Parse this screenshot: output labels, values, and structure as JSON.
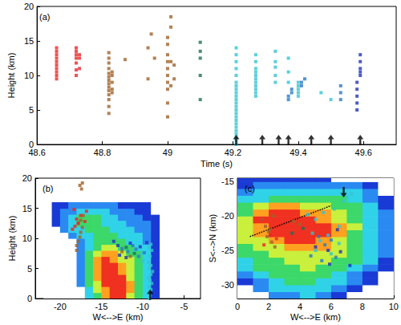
{
  "chart_data": [
    {
      "type": "scatter",
      "title": "(a)",
      "xlabel": "Time (s)",
      "ylabel": "Height (km)",
      "xlim": [
        48.6,
        49.7
      ],
      "xticks": [
        48.6,
        48.8,
        49.0,
        49.2,
        49.4,
        49.6
      ],
      "ylim": [
        0,
        20
      ],
      "yticks": [
        0,
        5,
        10,
        15,
        20
      ],
      "marker": "square",
      "series": [
        {
          "color": "#e8282a",
          "x": [
            48.66,
            48.66,
            48.66,
            48.66,
            48.66,
            48.66,
            48.66,
            48.66,
            48.66,
            48.66,
            48.72,
            48.72,
            48.72,
            48.72,
            48.72,
            48.72,
            48.72,
            48.73,
            48.73,
            48.73
          ],
          "y": [
            9.5,
            10,
            10.5,
            11,
            11.5,
            12,
            12.5,
            13,
            13.5,
            14,
            10,
            10.8,
            11.8,
            12.5,
            13,
            13.5,
            14,
            11,
            12.5,
            13
          ]
        },
        {
          "color": "#a0612a",
          "x": [
            48.82,
            48.82,
            48.82,
            48.82,
            48.82,
            48.82,
            48.82,
            48.82,
            48.82,
            48.82,
            48.82,
            48.82,
            48.82,
            48.82,
            48.83,
            48.83,
            48.83,
            48.83,
            48.83,
            48.87,
            48.94,
            48.94,
            48.95,
            48.96,
            49.0,
            49.0,
            49.0,
            49.0,
            49.0,
            49.0,
            49.0,
            49.0,
            49.0,
            49.0,
            49.01,
            49.01,
            49.01,
            49.01,
            49.02,
            49.02
          ],
          "y": [
            4.5,
            5.5,
            6.5,
            7.2,
            7.8,
            8.3,
            8.8,
            9.3,
            9.8,
            10.3,
            11,
            11.8,
            12.5,
            13.3,
            7.5,
            8,
            9,
            10,
            10.5,
            12.3,
            9.5,
            14,
            16,
            12.5,
            4,
            6,
            8,
            9,
            10,
            11,
            12,
            13,
            14.5,
            15.5,
            8.5,
            12,
            17,
            18.5,
            9.5,
            11.5
          ]
        },
        {
          "color": "#1e6e5a",
          "x": [
            49.1,
            49.1,
            49.1,
            49.1,
            49.1
          ],
          "y": [
            6.5,
            10,
            12.5,
            13.5,
            14.8
          ]
        },
        {
          "color": "#35c3d2",
          "x": [
            49.21,
            49.21,
            49.21,
            49.21,
            49.21,
            49.21,
            49.21,
            49.21,
            49.21,
            49.21,
            49.21,
            49.21,
            49.21,
            49.21,
            49.21,
            49.21,
            49.21,
            49.21,
            49.21,
            49.21,
            49.21,
            49.21,
            49.21,
            49.21,
            49.27,
            49.27,
            49.27,
            49.27,
            49.27,
            49.27,
            49.27,
            49.27,
            49.27,
            49.27,
            49.27,
            49.33,
            49.33,
            49.33,
            49.33,
            49.33,
            49.37,
            49.37,
            49.37,
            49.4,
            49.4,
            49.4,
            49.4,
            49.4,
            49.47,
            49.5
          ],
          "y": [
            0,
            0.5,
            1,
            1.5,
            2,
            2.5,
            3,
            3.5,
            4,
            4.5,
            5,
            5.5,
            6,
            6.5,
            7,
            7.5,
            8,
            8.5,
            9,
            10,
            11,
            12,
            13,
            14,
            7,
            7.5,
            8,
            8.5,
            9,
            9.5,
            10,
            10.5,
            11,
            12,
            13,
            9,
            10,
            11.2,
            12,
            13.5,
            9,
            10.5,
            12.5,
            7,
            7.5,
            8,
            8.5,
            9,
            7.5,
            6.5
          ]
        },
        {
          "color": "#2a78c8",
          "x": [
            49.37,
            49.37,
            49.38,
            49.38,
            49.41,
            49.41,
            49.42,
            49.53,
            49.53,
            49.53
          ],
          "y": [
            6.5,
            7,
            7.5,
            8,
            8.5,
            9,
            9.5,
            6.5,
            7.5,
            8.5
          ]
        },
        {
          "color": "#1f35b8",
          "x": [
            49.58,
            49.58,
            49.58,
            49.58,
            49.58,
            49.59,
            49.59,
            49.59,
            49.59,
            49.59
          ],
          "y": [
            5,
            6,
            7,
            8,
            9,
            10,
            10.5,
            11,
            12,
            13
          ]
        }
      ],
      "arrows": {
        "direction": "up",
        "x": [
          49.21,
          49.29,
          49.34,
          49.37,
          49.44,
          49.5,
          49.59
        ],
        "y": [
          1.4,
          1.4,
          1.4,
          1.4,
          1.4,
          1.4,
          1.4
        ]
      }
    },
    {
      "type": "scatter",
      "title": "(b)",
      "xlabel": "W<-->E (km)",
      "ylabel": "Height (km)",
      "xlim": [
        -23,
        -3
      ],
      "xticks": [
        -20,
        -15,
        -10,
        -5
      ],
      "ylim": [
        0,
        20
      ],
      "yticks": [
        0,
        5,
        10,
        15,
        20
      ],
      "marker": "square",
      "reflectivity": {
        "x0": -22,
        "y0": 0,
        "dx": 1,
        "dy": 1,
        "colors": [
          "#ffffff",
          "#1a3ad6",
          "#2a8af2",
          "#30d2e8",
          "#3cd86a",
          "#c8f03c",
          "#ffa020",
          "#f03020"
        ],
        "levels": [
          [
            0,
            0,
            0,
            0,
            0,
            3,
            4,
            6,
            7,
            7,
            5,
            4,
            3,
            1
          ],
          [
            0,
            0,
            0,
            0,
            0,
            3,
            5,
            6,
            7,
            7,
            6,
            4,
            3,
            1
          ],
          [
            0,
            0,
            0,
            0,
            2,
            4,
            5,
            7,
            7,
            7,
            6,
            4,
            3,
            1
          ],
          [
            0,
            0,
            0,
            0,
            2,
            4,
            6,
            7,
            7,
            7,
            5,
            4,
            3,
            1
          ],
          [
            0,
            0,
            0,
            0,
            2,
            4,
            6,
            7,
            7,
            6,
            5,
            4,
            3,
            1
          ],
          [
            0,
            0,
            0,
            0,
            2,
            4,
            6,
            7,
            7,
            6,
            5,
            4,
            3,
            1
          ],
          [
            0,
            0,
            0,
            0,
            2,
            4,
            6,
            7,
            6,
            5,
            5,
            4,
            3,
            1
          ],
          [
            0,
            0,
            0,
            0,
            2,
            4,
            5,
            6,
            6,
            5,
            4,
            4,
            3,
            1
          ],
          [
            0,
            0,
            0,
            0,
            2,
            3,
            4,
            5,
            5,
            4,
            4,
            3,
            3,
            1
          ],
          [
            0,
            0,
            0,
            0,
            2,
            3,
            4,
            4,
            4,
            4,
            3,
            3,
            2,
            1
          ],
          [
            0,
            0,
            0,
            2,
            3,
            3,
            4,
            4,
            4,
            3,
            3,
            3,
            2,
            1
          ],
          [
            0,
            0,
            2,
            3,
            3,
            4,
            4,
            4,
            3,
            3,
            3,
            2,
            2,
            1
          ],
          [
            0,
            1,
            2,
            3,
            4,
            4,
            4,
            3,
            3,
            3,
            2,
            2,
            2,
            1
          ],
          [
            0,
            1,
            2,
            3,
            4,
            4,
            4,
            3,
            3,
            2,
            2,
            2,
            1,
            1
          ],
          [
            0,
            1,
            2,
            2,
            3,
            3,
            3,
            3,
            2,
            2,
            2,
            1,
            1,
            0
          ],
          [
            0,
            1,
            1,
            2,
            2,
            2,
            2,
            2,
            2,
            1,
            1,
            1,
            1,
            0
          ]
        ]
      },
      "series": [
        {
          "color": "#a0612a",
          "x": [
            -18,
            -18,
            -17.8,
            -17.6,
            -17.5,
            -17.3,
            -17.8,
            -17.5,
            -17.2,
            -17.4,
            -17.6,
            -17.3,
            -12.5,
            -11.5
          ],
          "y": [
            8,
            8.8,
            9.5,
            10.2,
            11,
            11.8,
            12.5,
            13,
            13.8,
            18.2,
            18.8,
            19.2,
            7.8,
            7
          ]
        },
        {
          "color": "#e8282a",
          "x": [
            -18.5,
            -18.2,
            -17.8,
            -18,
            -17.5,
            -16.8,
            -17,
            -18.3
          ],
          "y": [
            11.5,
            12,
            12.5,
            13.2,
            13.8,
            14.5,
            12.8,
            14.8
          ]
        },
        {
          "color": "#1e6e5a",
          "x": [
            -12,
            -11
          ],
          "y": [
            8.5,
            7.5
          ]
        },
        {
          "color": "#35c3d2",
          "x": [
            -9.2,
            -9.1,
            -9.3,
            -9.0,
            -9.2,
            -8.9,
            -9.1,
            -9.3,
            -9.0,
            -8.8,
            -9.2,
            -9.0,
            -9.3,
            -9.1,
            -8.9,
            -9.2,
            -9.0,
            -11,
            -10.2,
            -10
          ],
          "y": [
            0,
            0.5,
            1,
            1.5,
            2,
            2.5,
            3,
            3.5,
            4,
            4.5,
            5,
            5.5,
            6,
            7,
            8,
            8.5,
            9,
            8,
            7.5,
            6.2
          ]
        },
        {
          "color": "#2a78c8",
          "x": [
            -12.5,
            -11.8,
            -11.2,
            -10.5,
            -10.8,
            -9.8
          ],
          "y": [
            8.3,
            7.8,
            8.8,
            7,
            8.2,
            7.6
          ]
        },
        {
          "color": "#1f35b8",
          "x": [
            -13.5,
            -13,
            -12.8,
            -11.5,
            -10.3,
            -9.5,
            -12
          ],
          "y": [
            9.5,
            8.8,
            7.2,
            9.2,
            8.6,
            9.3,
            6.8
          ]
        }
      ],
      "arrows": {
        "direction": "up",
        "x": [
          -9.1
        ],
        "y": [
          1.5
        ]
      }
    },
    {
      "type": "scatter",
      "title": "(c)",
      "xlabel": "W<-->E (km)",
      "ylabel": "S<-->N (km)",
      "xlim": [
        0,
        10
      ],
      "xticks": [
        0,
        2,
        4,
        6,
        8,
        10
      ],
      "ylim": [
        -32,
        -14.5
      ],
      "yticks": [
        -30,
        -25,
        -20,
        -15
      ],
      "marker": "square",
      "reflectivity": {
        "x0": 0,
        "y0": -32,
        "dx": 1,
        "dy": 1,
        "colors": [
          "#ffffff",
          "#1a3ad6",
          "#2a8af2",
          "#30d2e8",
          "#3cd86a",
          "#c8f03c",
          "#ffa020",
          "#f03020"
        ],
        "levels": [
          [
            0,
            0,
            2,
            2,
            3,
            2,
            1,
            0,
            0,
            0
          ],
          [
            0,
            2,
            3,
            3,
            3,
            3,
            2,
            1,
            0,
            0
          ],
          [
            1,
            2,
            3,
            4,
            4,
            3,
            3,
            2,
            1,
            0
          ],
          [
            2,
            3,
            4,
            4,
            4,
            4,
            3,
            2,
            1,
            0
          ],
          [
            3,
            4,
            4,
            4,
            5,
            4,
            4,
            3,
            2,
            1
          ],
          [
            3,
            4,
            4,
            5,
            5,
            5,
            4,
            4,
            3,
            1
          ],
          [
            4,
            4,
            5,
            5,
            5,
            5,
            5,
            4,
            3,
            2
          ],
          [
            4,
            5,
            5,
            6,
            6,
            6,
            5,
            4,
            3,
            2
          ],
          [
            5,
            5,
            6,
            7,
            7,
            6,
            5,
            4,
            3,
            2
          ],
          [
            5,
            6,
            7,
            7,
            7,
            7,
            6,
            4,
            3,
            2
          ],
          [
            5,
            6,
            7,
            7,
            7,
            7,
            6,
            5,
            3,
            2
          ],
          [
            5,
            7,
            7,
            7,
            7,
            6,
            5,
            4,
            3,
            2
          ],
          [
            4,
            6,
            7,
            7,
            6,
            6,
            5,
            4,
            3,
            2
          ],
          [
            4,
            5,
            6,
            6,
            5,
            5,
            4,
            4,
            3,
            1
          ],
          [
            3,
            3,
            4,
            4,
            4,
            4,
            4,
            3,
            2,
            1
          ],
          [
            2,
            3,
            3,
            3,
            3,
            3,
            3,
            3,
            2,
            0
          ],
          [
            1,
            2,
            2,
            2,
            2,
            2,
            2,
            2,
            1,
            0
          ],
          [
            1,
            1,
            1,
            1,
            1,
            1,
            0,
            0,
            0,
            0
          ]
        ]
      },
      "series": [
        {
          "color": "#a0612a",
          "x": [
            1.6,
            1.8,
            2,
            1.9,
            2.2,
            2.4,
            2.1,
            4,
            3.6,
            2.3
          ],
          "y": [
            -20.5,
            -21.5,
            -22.3,
            -23,
            -23.8,
            -24.5,
            -22,
            -21.2,
            -20.8,
            -20
          ]
        },
        {
          "color": "#e8282a",
          "x": [
            2.1,
            1.7,
            2.5
          ],
          "y": [
            -22.8,
            -24.2,
            -23.3
          ]
        },
        {
          "color": "#1e6e5a",
          "x": [
            4.2,
            3.5
          ],
          "y": [
            -21.8,
            -22.5
          ]
        },
        {
          "color": "#35c3d2",
          "x": [
            4.5,
            5,
            5.5,
            6.2,
            4.8,
            5.3,
            5.8,
            6.5,
            7,
            7.3,
            6.8,
            5,
            6,
            6.5
          ],
          "y": [
            -19.8,
            -20.5,
            -19.5,
            -19,
            -22.5,
            -23.6,
            -22.8,
            -24,
            -17.2,
            -16.8,
            -17.8,
            -25,
            -25.5,
            -21.5
          ]
        },
        {
          "color": "#2a78c8",
          "x": [
            5.2,
            5.6,
            6,
            6.3,
            5.4,
            4.7
          ],
          "y": [
            -23,
            -24.2,
            -23.5,
            -26,
            -26.5,
            -25.8
          ]
        },
        {
          "color": "#1f35b8",
          "x": [
            5,
            5.8,
            6.6,
            7.2,
            5.9,
            6.4
          ],
          "y": [
            -24.5,
            -25,
            -25.2,
            -27.2,
            -27,
            -22
          ]
        }
      ],
      "line": {
        "color": "#000000",
        "line_style": "dotted",
        "x": [
          0.8,
          6
        ],
        "y": [
          -23,
          -18.5
        ]
      },
      "arrows": {
        "direction": "down",
        "x": [
          6.8
        ],
        "y": [
          -17.3
        ]
      }
    }
  ]
}
